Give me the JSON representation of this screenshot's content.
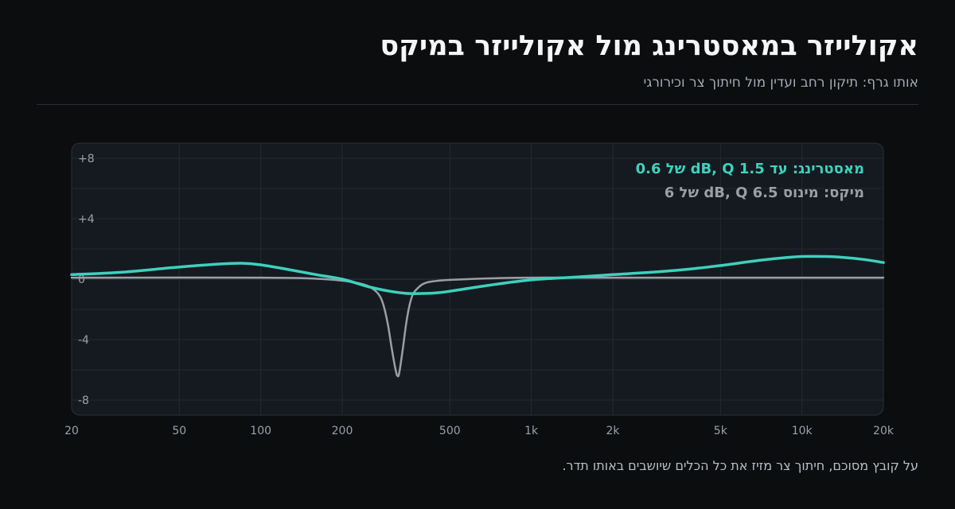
{
  "header": {
    "title": "אקולייזר במאסטרינג מול אקולייזר במיקס",
    "subtitle": "אותו גרף: תיקון רחב ועדין מול חיתוך צר וכירורגי"
  },
  "caption": "על קובץ מסוכם, חיתוך צר מזיז את כל הכלים שיושבים באותו תדר.",
  "chart_data": {
    "type": "line",
    "xscale": "log",
    "xlim": [
      20,
      20000
    ],
    "ylim": [
      -9,
      9
    ],
    "grid": true,
    "legend_position": "top-right",
    "x_ticks": [
      {
        "value": 20,
        "label": "20"
      },
      {
        "value": 50,
        "label": "50"
      },
      {
        "value": 100,
        "label": "100"
      },
      {
        "value": 200,
        "label": "200"
      },
      {
        "value": 500,
        "label": "500"
      },
      {
        "value": 1000,
        "label": "1k"
      },
      {
        "value": 2000,
        "label": "2k"
      },
      {
        "value": 5000,
        "label": "5k"
      },
      {
        "value": 10000,
        "label": "10k"
      },
      {
        "value": 20000,
        "label": "20k"
      }
    ],
    "y_ticks": [
      {
        "value": 8,
        "label": "+8"
      },
      {
        "value": 4,
        "label": "+4"
      },
      {
        "value": 0,
        "label": "0"
      },
      {
        "value": -4,
        "label": "-4"
      },
      {
        "value": -8,
        "label": "-8"
      }
    ],
    "series": [
      {
        "name": "מאסטרינג: עד 1.5 dB, Q של 0.6",
        "color": "#3ed1bd",
        "x": [
          20,
          30,
          50,
          70,
          85,
          100,
          130,
          160,
          200,
          250,
          300,
          350,
          400,
          450,
          500,
          700,
          1000,
          1500,
          2000,
          3000,
          4000,
          5000,
          7000,
          9000,
          10000,
          12000,
          14000,
          17000,
          20000
        ],
        "y": [
          0.3,
          0.45,
          0.8,
          1.0,
          1.05,
          0.95,
          0.6,
          0.3,
          0.0,
          -0.5,
          -0.8,
          -0.95,
          -0.95,
          -0.9,
          -0.8,
          -0.4,
          -0.05,
          0.15,
          0.3,
          0.5,
          0.7,
          0.9,
          1.25,
          1.45,
          1.5,
          1.5,
          1.45,
          1.3,
          1.1
        ]
      },
      {
        "name": "מיקס: מינוס 6.5 dB, Q של 6",
        "color": "#9a9fa5",
        "x": [
          20,
          100,
          150,
          200,
          240,
          260,
          275,
          285,
          295,
          305,
          315,
          320,
          325,
          335,
          345,
          355,
          365,
          380,
          400,
          430,
          500,
          700,
          1000,
          2000,
          20000
        ],
        "y": [
          0.1,
          0.1,
          0.05,
          -0.1,
          -0.35,
          -0.65,
          -1.1,
          -1.8,
          -3.0,
          -4.6,
          -6.0,
          -6.4,
          -6.2,
          -4.6,
          -2.9,
          -1.7,
          -1.0,
          -0.6,
          -0.3,
          -0.15,
          -0.05,
          0.05,
          0.1,
          0.1,
          0.1
        ]
      }
    ]
  }
}
